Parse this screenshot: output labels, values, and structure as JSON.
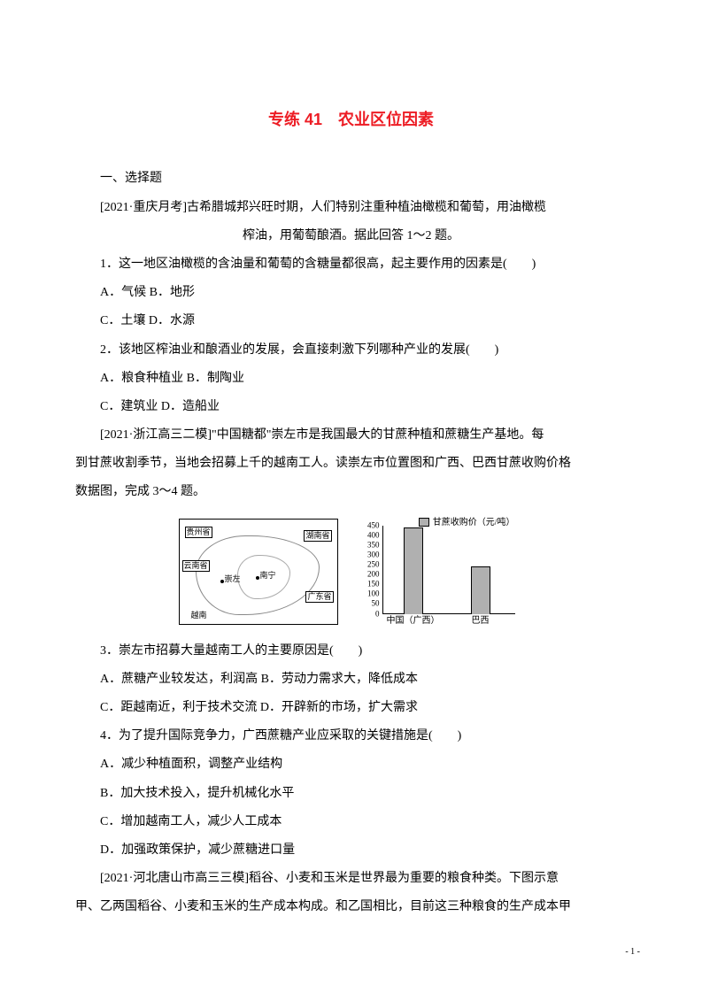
{
  "title": "专练 41　农业区位因素",
  "section1": "一、选择题",
  "intro1": "[2021·重庆月考]古希腊城邦兴旺时期，人们特别注重种植油橄榄和葡萄，用油橄榄",
  "intro1b": "榨油，用葡萄酿酒。据此回答 1～2 题。",
  "q1": "1．这一地区油橄榄的含油量和葡萄的含糖量都很高，起主要作用的因素是(　　)",
  "q1a": "A．气候 B．地形",
  "q1b": "C．土壤 D．水源",
  "q2": "2．该地区榨油业和酿酒业的发展，会直接刺激下列哪种产业的发展(　　)",
  "q2a": "A．粮食种植业 B．制陶业",
  "q2b": "C．建筑业 D．造船业",
  "intro2_l1": "[2021·浙江高三二模]\"中国糖都\"崇左市是我国最大的甘蔗种植和蔗糖生产基地。每",
  "intro2_l2": "到甘蔗收割季节，当地会招募上千的越南工人。读崇左市位置图和广西、巴西甘蔗收购价格",
  "intro2_l3": "数据图，完成 3～4 题。",
  "map": {
    "labels": {
      "guizhou": "贵州省",
      "hunan": "湖南省",
      "yunnan": "云南省",
      "guangdong": "广东省",
      "chongzuo": "崇左",
      "nanning": "南宁",
      "vietnam": "越南"
    }
  },
  "chart": {
    "legend_label": "甘蔗收购价（元/吨）",
    "y_max": 450,
    "y_ticks": [
      "450",
      "400",
      "350",
      "300",
      "250",
      "200",
      "150",
      "100",
      "50",
      "0"
    ],
    "bars": [
      {
        "label": "中国（广西）",
        "value": 440
      },
      {
        "label": "巴西",
        "value": 240
      }
    ],
    "bar_color": "#b0b0b0",
    "axis_color": "#000000"
  },
  "q3": "3．崇左市招募大量越南工人的主要原因是(　　)",
  "q3a": "A．蔗糖产业较发达，利润高 B．劳动力需求大，降低成本",
  "q3b": "C．距越南近，利于技术交流 D．开辟新的市场，扩大需求",
  "q4": "4．为了提升国际竞争力，广西蔗糖产业应采取的关键措施是(　　)",
  "q4a": "A．减少种植面积，调整产业结构",
  "q4b": "B．加大技术投入，提升机械化水平",
  "q4c": "C．增加越南工人，减少人工成本",
  "q4d": "D．加强政策保护，减少蔗糖进口量",
  "intro3_l1": "[2021·河北唐山市高三三模]稻谷、小麦和玉米是世界最为重要的粮食种类。下图示意",
  "intro3_l2": "甲、乙两国稻谷、小麦和玉米的生产成本构成。和乙国相比，目前这三种粮食的生产成本甲",
  "page_number": "- 1 -"
}
